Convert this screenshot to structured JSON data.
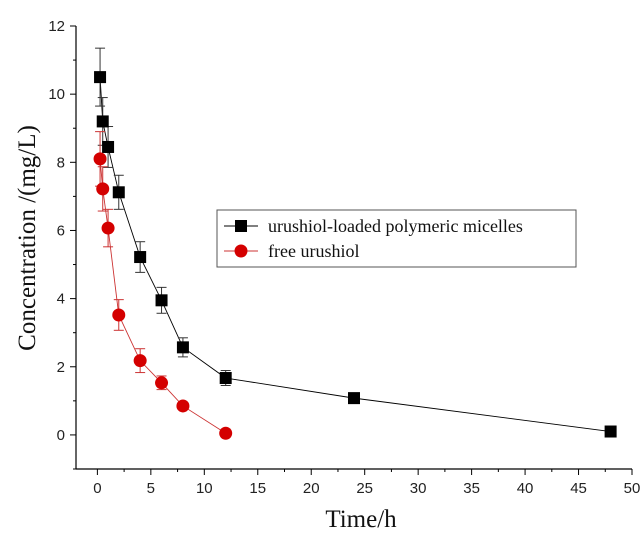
{
  "chart_data": {
    "type": "scatter",
    "xlabel": "Time/h",
    "ylabel": "Concentration /(mg/L)",
    "xlim": [
      -2,
      50
    ],
    "ylim": [
      -1,
      12
    ],
    "xticks": [
      "0",
      "5",
      "10",
      "15",
      "20",
      "25",
      "30",
      "35",
      "40",
      "45",
      "50"
    ],
    "yticks": [
      "0",
      "2",
      "4",
      "6",
      "8",
      "10",
      "12"
    ],
    "grid": false,
    "legend_position": "center-right",
    "series": [
      {
        "name": "urushiol-loaded polymeric micelles",
        "marker": "square",
        "color": "#000000",
        "line_color": "#000000",
        "error_color": "#333333",
        "points": [
          {
            "x": 0.25,
            "y": 10.5,
            "err": 0.85
          },
          {
            "x": 0.5,
            "y": 9.2,
            "err": 0.7
          },
          {
            "x": 1,
            "y": 8.45,
            "err": 0.6
          },
          {
            "x": 2,
            "y": 7.12,
            "err": 0.5
          },
          {
            "x": 4,
            "y": 5.22,
            "err": 0.45
          },
          {
            "x": 6,
            "y": 3.95,
            "err": 0.38
          },
          {
            "x": 8,
            "y": 2.57,
            "err": 0.28
          },
          {
            "x": 12,
            "y": 1.67,
            "err": 0.22
          },
          {
            "x": 24,
            "y": 1.08,
            "err": 0.08
          },
          {
            "x": 48,
            "y": 0.1,
            "err": 0.05
          }
        ]
      },
      {
        "name": "free urushiol",
        "marker": "circle",
        "color": "#d40000",
        "line_color": "#cc3333",
        "error_color": "#cc3333",
        "points": [
          {
            "x": 0.25,
            "y": 8.1,
            "err": 0.8
          },
          {
            "x": 0.5,
            "y": 7.22,
            "err": 0.65
          },
          {
            "x": 1,
            "y": 6.07,
            "err": 0.55
          },
          {
            "x": 2,
            "y": 3.52,
            "err": 0.45
          },
          {
            "x": 4,
            "y": 2.18,
            "err": 0.35
          },
          {
            "x": 6,
            "y": 1.53,
            "err": 0.2
          },
          {
            "x": 8,
            "y": 0.85,
            "err": 0.08
          },
          {
            "x": 12,
            "y": 0.05,
            "err": 0.05
          }
        ]
      }
    ]
  }
}
